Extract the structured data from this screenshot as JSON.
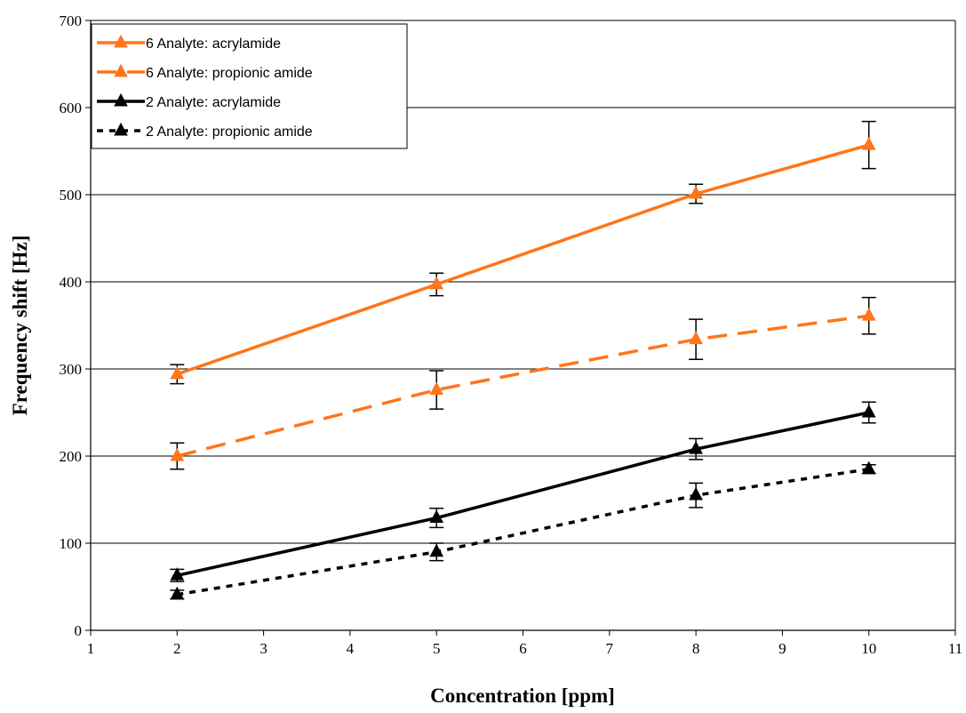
{
  "chart_data": {
    "type": "line",
    "xlabel": "Concentration [ppm]",
    "ylabel": "Frequency shift [Hz]",
    "xlim": [
      1,
      11
    ],
    "ylim": [
      0,
      700
    ],
    "xticks": [
      "1",
      "2",
      "3",
      "4",
      "5",
      "6",
      "7",
      "8",
      "9",
      "10",
      "11"
    ],
    "yticks": [
      "0",
      "100",
      "200",
      "300",
      "400",
      "500",
      "600",
      "700"
    ],
    "grid": "horizontal",
    "legend_position": "top-left",
    "series": [
      {
        "name": "6 Analyte: acrylamide",
        "color": "#ff7518",
        "line_style": "solid",
        "marker": "triangle",
        "x": [
          2,
          5,
          8,
          10
        ],
        "y": [
          294,
          397,
          501,
          557
        ],
        "err": [
          11,
          13,
          11,
          27
        ]
      },
      {
        "name": "6 Analyte: propionic amide",
        "color": "#ff7518",
        "line_style": "dashed",
        "marker": "triangle",
        "x": [
          2,
          5,
          8,
          10
        ],
        "y": [
          200,
          276,
          334,
          361
        ],
        "err": [
          15,
          22,
          23,
          21
        ]
      },
      {
        "name": "2 Analyte: acrylamide",
        "color": "#000000",
        "line_style": "solid",
        "marker": "triangle",
        "x": [
          2,
          5,
          8,
          10
        ],
        "y": [
          63,
          129,
          208,
          250
        ],
        "err": [
          7,
          11,
          12,
          12
        ]
      },
      {
        "name": "2 Analyte: propionic amide",
        "color": "#000000",
        "line_style": "dotted",
        "marker": "triangle",
        "x": [
          2,
          5,
          8,
          10
        ],
        "y": [
          41,
          90,
          155,
          185
        ],
        "err": [
          5,
          10,
          14,
          5
        ]
      }
    ]
  }
}
